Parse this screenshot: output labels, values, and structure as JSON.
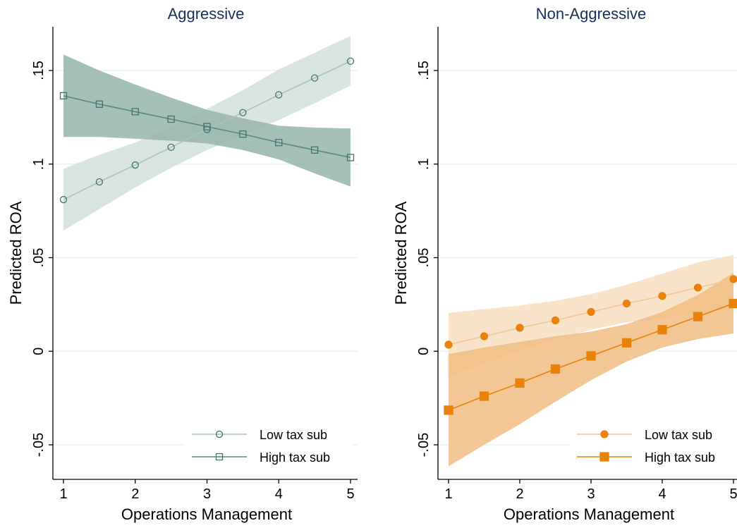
{
  "chart_data": [
    {
      "type": "line",
      "title": "Aggressive",
      "xlabel": "Operations Management",
      "ylabel": "Predicted ROA",
      "xlim": [
        1,
        5
      ],
      "ylim": [
        -0.05,
        0.15
      ],
      "xticks": [
        1,
        2,
        3,
        4,
        5
      ],
      "xtick_labels": [
        "1",
        "2",
        "3",
        "4",
        "5"
      ],
      "yticks": [
        -0.05,
        0,
        0.05,
        0.1,
        0.15
      ],
      "ytick_labels": [
        "-.05",
        "0",
        ".05",
        ".1",
        ".15"
      ],
      "grid": true,
      "legend_position": "bottom-right",
      "x": [
        1,
        1.5,
        2,
        2.5,
        3,
        3.5,
        4,
        4.5,
        5
      ],
      "series": [
        {
          "name": "Low tax sub",
          "marker": "circle-hollow",
          "line_color": "#a9c4bd",
          "marker_color": "#3f7468",
          "band_color": "#d3e1dd",
          "values": [
            0.081,
            0.0905,
            0.0995,
            0.109,
            0.1185,
            0.1275,
            0.137,
            0.146,
            0.155
          ],
          "ci_lower": [
            0.0645,
            0.076,
            0.0875,
            0.098,
            0.1075,
            0.1155,
            0.1235,
            0.1325,
            0.142
          ],
          "ci_upper": [
            0.0975,
            0.105,
            0.1115,
            0.12,
            0.1295,
            0.1395,
            0.1505,
            0.1595,
            0.1685
          ]
        },
        {
          "name": "High tax sub",
          "marker": "square-hollow",
          "line_color": "#5c887c",
          "marker_color": "#3f7468",
          "band_color": "#95b5ab",
          "values": [
            0.1365,
            0.132,
            0.128,
            0.124,
            0.12,
            0.116,
            0.1115,
            0.1075,
            0.1035
          ],
          "ci_lower": [
            0.1145,
            0.1145,
            0.1135,
            0.1125,
            0.111,
            0.1075,
            0.1025,
            0.095,
            0.088
          ],
          "ci_upper": [
            0.1585,
            0.15,
            0.1425,
            0.1355,
            0.129,
            0.1245,
            0.1205,
            0.1195,
            0.119
          ]
        }
      ]
    },
    {
      "type": "line",
      "title": "Non-Aggressive",
      "xlabel": "Operations Management",
      "ylabel": "Predicted ROA",
      "xlim": [
        1,
        5
      ],
      "ylim": [
        -0.05,
        0.15
      ],
      "xticks": [
        1,
        2,
        3,
        4,
        5
      ],
      "xtick_labels": [
        "1",
        "2",
        "3",
        "4",
        "5"
      ],
      "yticks": [
        -0.05,
        0,
        0.05,
        0.1,
        0.15
      ],
      "ytick_labels": [
        "-.05",
        "0",
        ".05",
        ".1",
        ".15"
      ],
      "grid": true,
      "legend_position": "bottom-right",
      "x": [
        1,
        1.5,
        2,
        2.5,
        3,
        3.5,
        4,
        4.5,
        5
      ],
      "series": [
        {
          "name": "Low tax sub",
          "marker": "circle-filled",
          "line_color": "#f2c896",
          "marker_color": "#e8820a",
          "band_color": "#f8dfc1",
          "values": [
            0.0035,
            0.008,
            0.0125,
            0.0165,
            0.021,
            0.0255,
            0.0295,
            0.034,
            0.0385
          ],
          "ci_lower": [
            -0.0135,
            -0.0065,
            0.0005,
            0.0065,
            0.0115,
            0.0155,
            0.0175,
            0.02,
            0.023
          ],
          "ci_upper": [
            0.0205,
            0.0225,
            0.0245,
            0.027,
            0.0305,
            0.0355,
            0.0415,
            0.0475,
            0.0515
          ]
        },
        {
          "name": "High tax sub",
          "marker": "square-filled",
          "line_color": "#e8820a",
          "marker_color": "#e8820a",
          "band_color": "#f0bd82",
          "values": [
            -0.0315,
            -0.024,
            -0.017,
            -0.0095,
            -0.0025,
            0.0045,
            0.0115,
            0.0185,
            0.0255
          ],
          "ci_lower": [
            -0.0615,
            -0.05,
            -0.039,
            -0.027,
            -0.0155,
            -0.0055,
            0.002,
            0.0065,
            0.0095
          ],
          "ci_upper": [
            -0.0015,
            0.002,
            0.005,
            0.008,
            0.0105,
            0.0145,
            0.021,
            0.03,
            0.042
          ]
        }
      ]
    }
  ]
}
